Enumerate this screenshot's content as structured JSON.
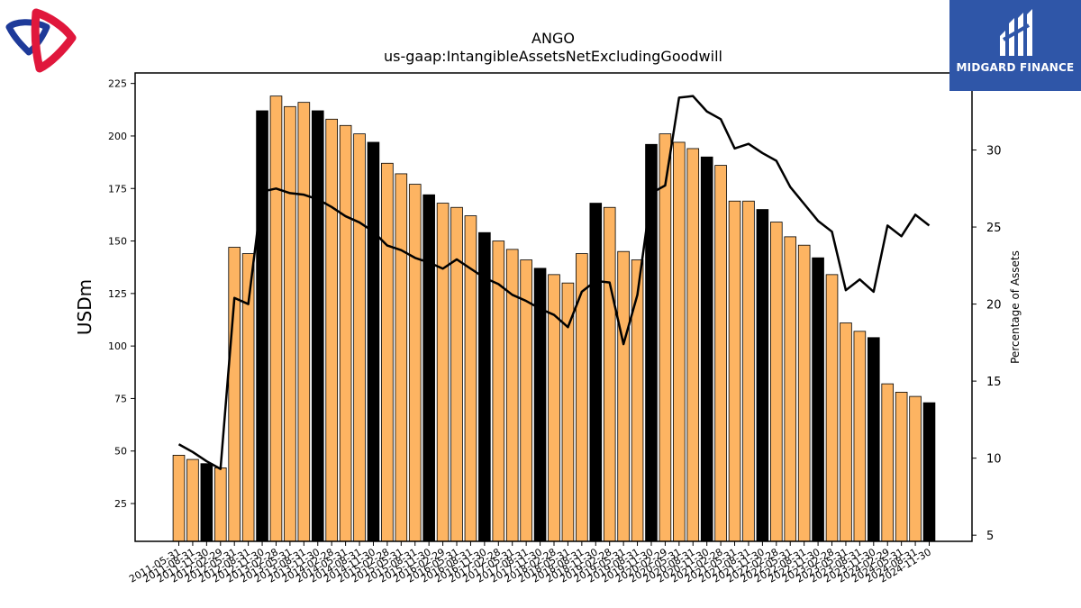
{
  "branding": {
    "left_logo": "red-blue-ring-logo",
    "right_logo_text": "MIDGARD FINANCE",
    "right_logo_color": "#2f56a8"
  },
  "chart_data": {
    "type": "bar",
    "title": "ANGO",
    "subtitle": "us-gaap:IntangibleAssetsNetExcludingGoodwill",
    "ylabel": "USDm",
    "y2label": "Percentage of Assets",
    "ylim": [
      7,
      230
    ],
    "y2lim": [
      4.6,
      35.0
    ],
    "yticks": [
      25,
      50,
      75,
      100,
      125,
      150,
      175,
      200,
      225
    ],
    "y2ticks": [
      5,
      10,
      15,
      20,
      25,
      30
    ],
    "colors": {
      "bar": "#fdb462",
      "bar_highlight": "#000000",
      "line": "#000000"
    },
    "categories": [
      "2011-05-31",
      "2011-08-31",
      "2011-11-30",
      "2012-02-29",
      "2012-05-31",
      "2012-08-31",
      "2012-11-30",
      "2013-02-28",
      "2013-05-31",
      "2013-08-31",
      "2013-11-30",
      "2014-02-28",
      "2014-05-31",
      "2014-08-31",
      "2014-11-30",
      "2015-02-28",
      "2015-05-31",
      "2015-08-31",
      "2015-11-30",
      "2016-02-29",
      "2016-05-31",
      "2016-08-31",
      "2016-11-30",
      "2017-02-28",
      "2017-05-31",
      "2017-08-31",
      "2017-11-30",
      "2018-02-28",
      "2018-05-31",
      "2018-08-31",
      "2018-11-30",
      "2019-02-28",
      "2019-05-31",
      "2019-08-31",
      "2019-11-30",
      "2020-02-29",
      "2020-05-31",
      "2020-08-31",
      "2020-11-30",
      "2021-02-28",
      "2021-05-31",
      "2021-08-31",
      "2021-11-30",
      "2022-02-28",
      "2022-05-31",
      "2022-08-31",
      "2022-11-30",
      "2023-02-28",
      "2023-05-31",
      "2023-08-31",
      "2023-11-30",
      "2024-02-29",
      "2024-05-31",
      "2024-08-31",
      "2024-11-30"
    ],
    "series": [
      {
        "name": "",
        "axis": "left",
        "kind": "bar",
        "values": [
          48,
          46,
          44,
          42,
          147,
          144,
          212,
          219,
          214,
          216,
          212,
          208,
          205,
          201,
          197,
          187,
          182,
          177,
          172,
          168,
          166,
          162,
          154,
          150,
          146,
          141,
          137,
          134,
          130,
          144,
          168,
          166,
          145,
          141,
          196,
          201,
          197,
          194,
          190,
          186,
          169,
          169,
          165,
          159,
          152,
          148,
          142,
          134,
          111,
          107,
          104,
          82,
          78,
          76,
          73
        ],
        "highlight": [
          false,
          false,
          true,
          false,
          false,
          false,
          true,
          false,
          false,
          false,
          true,
          false,
          false,
          false,
          true,
          false,
          false,
          false,
          true,
          false,
          false,
          false,
          true,
          false,
          false,
          false,
          true,
          false,
          false,
          false,
          true,
          false,
          false,
          false,
          true,
          false,
          false,
          false,
          true,
          false,
          false,
          false,
          true,
          false,
          false,
          false,
          true,
          false,
          false,
          false,
          true,
          false,
          false,
          false,
          true
        ]
      },
      {
        "name": "",
        "axis": "right",
        "kind": "line",
        "values": [
          10.9,
          10.4,
          9.8,
          9.3,
          20.4,
          20.0,
          27.3,
          27.5,
          27.2,
          27.1,
          26.8,
          26.3,
          25.7,
          25.3,
          24.7,
          23.8,
          23.5,
          23.0,
          22.7,
          22.3,
          22.9,
          22.3,
          21.7,
          21.3,
          20.6,
          20.2,
          19.7,
          19.3,
          18.5,
          20.8,
          21.5,
          21.4,
          17.4,
          20.6,
          27.2,
          27.7,
          33.4,
          33.5,
          32.5,
          32.0,
          30.1,
          30.4,
          29.8,
          29.3,
          27.6,
          26.5,
          25.4,
          24.7,
          20.9,
          21.6,
          20.8,
          25.1,
          24.4,
          25.8,
          25.1
        ]
      }
    ]
  }
}
